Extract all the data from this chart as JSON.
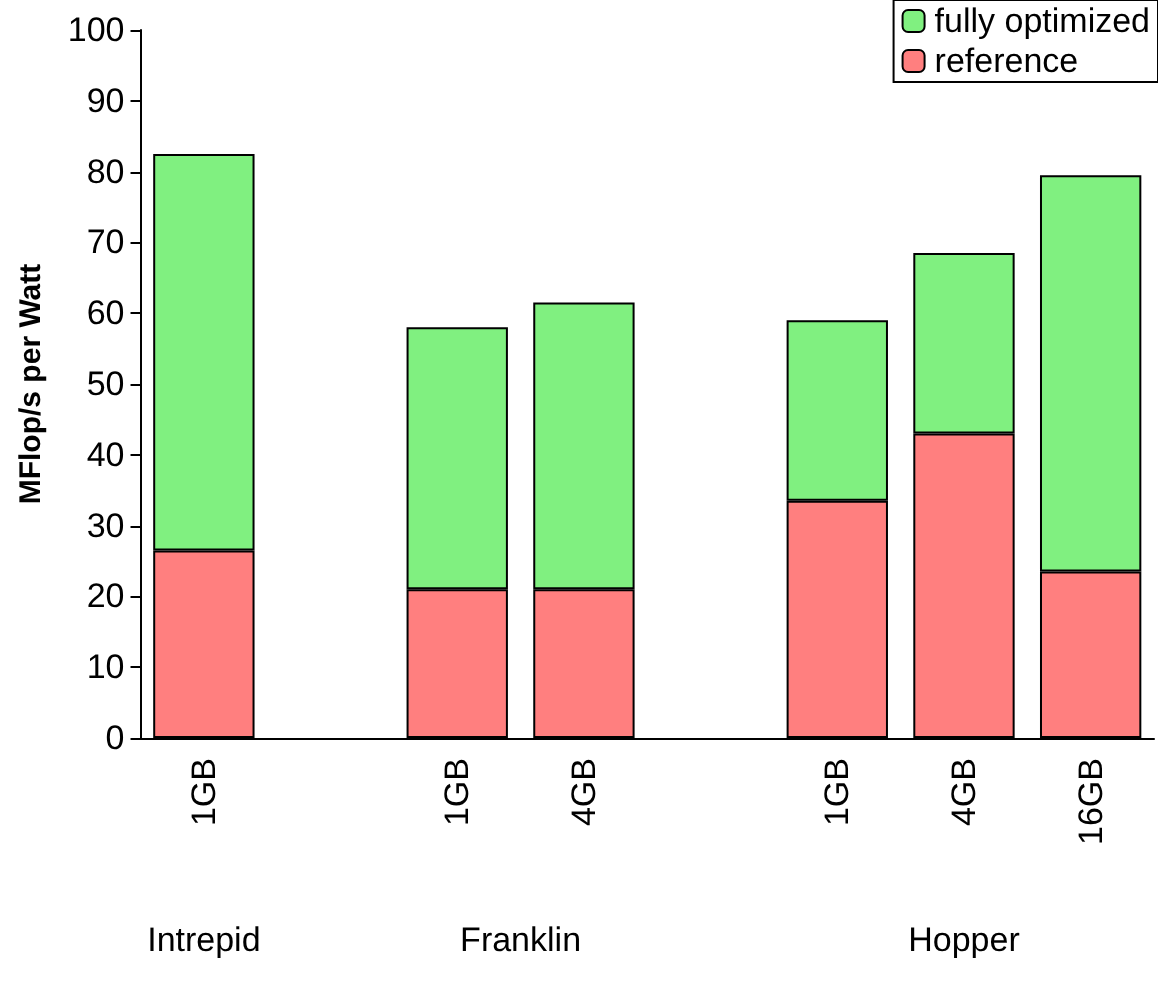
{
  "chart_data": {
    "type": "bar",
    "stacked": true,
    "ylabel": "MFlop/s per Watt",
    "categories": [
      "1GB",
      null,
      "1GB",
      "4GB",
      null,
      "1GB",
      "4GB",
      "16GB"
    ],
    "series": [
      {
        "name": "reference",
        "color": "#ff7f7f",
        "values": [
          26.5,
          null,
          21,
          21,
          null,
          33.5,
          43,
          23.5
        ]
      },
      {
        "name": "fully optimized",
        "color": "#80f080",
        "values": [
          56,
          null,
          37,
          40.5,
          null,
          25.5,
          25.5,
          56
        ]
      }
    ],
    "ylim": [
      0,
      100
    ],
    "yticks": [
      0,
      10,
      20,
      30,
      40,
      50,
      60,
      70,
      80,
      90,
      100
    ],
    "grid": false,
    "legend": "top right",
    "annotations": [
      "Intrepid",
      "Franklin",
      "Hopper"
    ]
  }
}
